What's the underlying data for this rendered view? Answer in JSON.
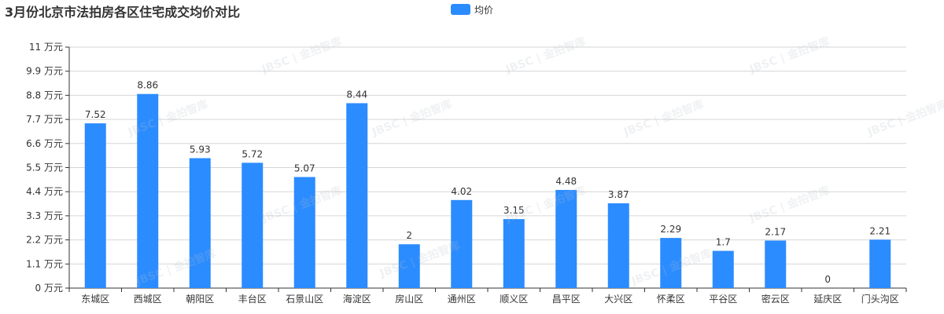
{
  "chart_data": {
    "type": "bar",
    "title": "3月份北京市法拍房各区住宅成交均价对比",
    "categories": [
      "东城区",
      "西城区",
      "朝阳区",
      "丰台区",
      "石景山区",
      "海淀区",
      "房山区",
      "通州区",
      "顺义区",
      "昌平区",
      "大兴区",
      "怀柔区",
      "平谷区",
      "密云区",
      "延庆区",
      "门头沟区"
    ],
    "series": [
      {
        "name": "均价",
        "values": [
          7.52,
          8.86,
          5.93,
          5.72,
          5.07,
          8.44,
          2,
          4.02,
          3.15,
          4.48,
          3.87,
          2.29,
          1.7,
          2.17,
          0,
          2.21
        ]
      }
    ],
    "value_labels": [
      "7.52",
      "8.86",
      "5.93",
      "5.72",
      "5.07",
      "8.44",
      "2",
      "4.02",
      "3.15",
      "4.48",
      "3.87",
      "2.29",
      "1.7",
      "2.17",
      "0",
      "2.21"
    ],
    "y_ticks": [
      "0 万元",
      "1.1 万元",
      "2.2 万元",
      "3.3 万元",
      "4.4 万元",
      "5.5 万元",
      "6.6 万元",
      "7.7 万元",
      "8.8 万元",
      "9.9 万元",
      "11 万元"
    ],
    "ylim": [
      0,
      11
    ],
    "ylabel": "",
    "xlabel": "",
    "grid": true,
    "legend": "top-center",
    "bar_color": "#2b8cff"
  },
  "watermark_text": "JBSC | 金拍智库"
}
